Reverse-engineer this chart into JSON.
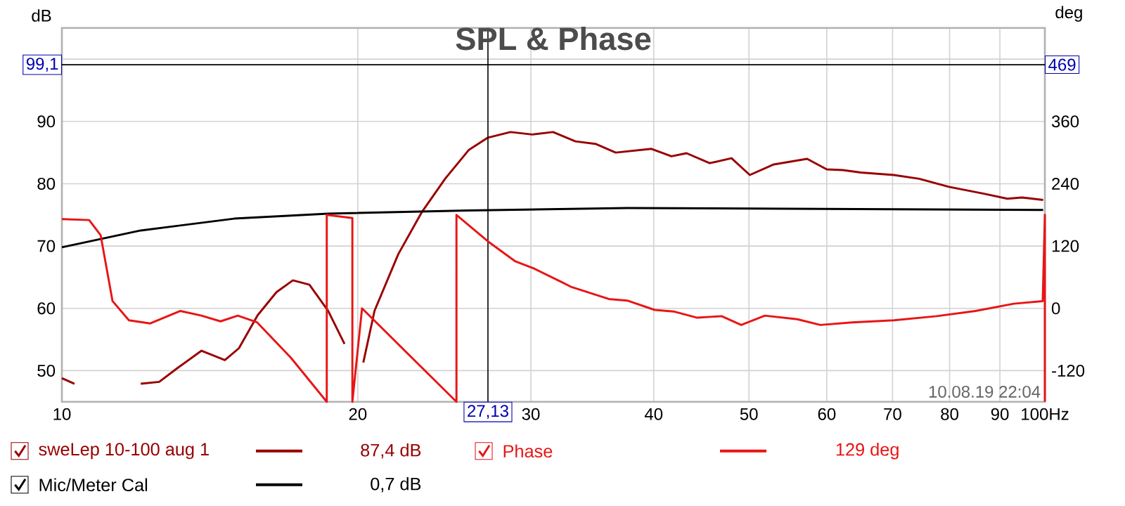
{
  "chart_data": {
    "type": "line",
    "title": "SPL & Phase",
    "ylabel": "dB",
    "y2label": "deg",
    "log": "x",
    "grid": true,
    "legend": "bottom",
    "xlim": [
      10,
      100
    ],
    "ylim": [
      45,
      105
    ],
    "y2lim": [
      -180,
      540
    ],
    "xticks": [
      10,
      20,
      30,
      40,
      50,
      60,
      70,
      80,
      90,
      {
        "value": 100,
        "label": "100Hz"
      }
    ],
    "yticks": [
      50,
      60,
      70,
      80,
      90,
      {
        "value": 100,
        "label": null
      }
    ],
    "y2ticks": [
      -120,
      0,
      120,
      240,
      360
    ],
    "series": [
      {
        "name": "sweLep 10-100 aug 1",
        "color": "#990000",
        "x": [
          10.0,
          10.3,
          10.6,
          11.1,
          11.57,
          12.03,
          12.56,
          13.13,
          13.87,
          14.65,
          15.14,
          15.82,
          16.53,
          17.18,
          17.86,
          18.66,
          19.39,
          19.7,
          19.85,
          20.0,
          20.26,
          20.8,
          21.99,
          23.25,
          24.54,
          25.93,
          27.13,
          28.6,
          30.1,
          31.6,
          33.3,
          34.9,
          36.6,
          39.8,
          41.7,
          43.2,
          45.6,
          48.0,
          50.1,
          53.0,
          57.3,
          60.0,
          62.3,
          65.0,
          70.2,
          74.5,
          79.9,
          86.7,
          91.6,
          94.8,
          99.6
        ],
        "values": [
          48.8,
          47.9,
          null,
          null,
          null,
          47.9,
          48.2,
          50.5,
          53.2,
          51.7,
          53.6,
          58.9,
          62.6,
          64.5,
          63.8,
          59.6,
          54.3,
          null,
          null,
          null,
          51.3,
          59.6,
          68.7,
          75.5,
          80.8,
          85.4,
          87.4,
          88.3,
          87.9,
          88.3,
          86.8,
          86.4,
          85.0,
          85.6,
          84.4,
          84.9,
          83.3,
          84.1,
          81.4,
          83.1,
          84.0,
          82.3,
          82.2,
          81.8,
          81.4,
          80.8,
          79.5,
          78.4,
          77.6,
          77.8,
          77.4
        ]
      },
      {
        "name": "Phase",
        "color": "#e81515",
        "axis": "y2",
        "x": [
          10.0,
          10.66,
          10.95,
          11.26,
          11.7,
          12.3,
          13.2,
          13.87,
          14.5,
          15.1,
          15.8,
          17.1,
          18.6,
          18.6,
          19.75,
          19.75,
          20.2,
          25.2,
          25.2,
          27.13,
          28.9,
          30.2,
          32.3,
          33.0,
          36.0,
          37.6,
          40.1,
          41.9,
          44.3,
          46.9,
          49.1,
          51.9,
          56.0,
          59.1,
          63.7,
          70.2,
          77.6,
          85.0,
          93.0,
          99.5,
          100,
          100
        ],
        "values": [
          172,
          170,
          141,
          14,
          -23,
          -29,
          -5,
          -14,
          -25,
          -14,
          -27,
          -95,
          -180,
          180,
          174,
          -180,
          0,
          -180,
          180,
          129,
          91,
          77,
          50,
          41,
          18,
          15,
          -3,
          -6,
          -18,
          -15,
          -32,
          -14,
          -21,
          -32,
          -27,
          -23,
          -15,
          -5,
          9,
          14,
          180,
          -180
        ]
      },
      {
        "name": "Mic/Meter Cal",
        "color": "#000000",
        "x": [
          10.0,
          12.03,
          14.97,
          18.66,
          25.9,
          37.6,
          99.6
        ],
        "values": [
          69.8,
          72.5,
          74.4,
          75.2,
          75.7,
          76.1,
          75.8
        ]
      }
    ],
    "ref_lines": [
      {
        "axis": "y",
        "value": 99.1,
        "label": "99,1"
      },
      {
        "axis": "x",
        "value": 27.13,
        "label": "27,13"
      }
    ],
    "annotations": [
      "87,4 dB",
      "129 deg",
      "0,7 dB",
      "469",
      "10.08.19 22:04"
    ]
  }
}
